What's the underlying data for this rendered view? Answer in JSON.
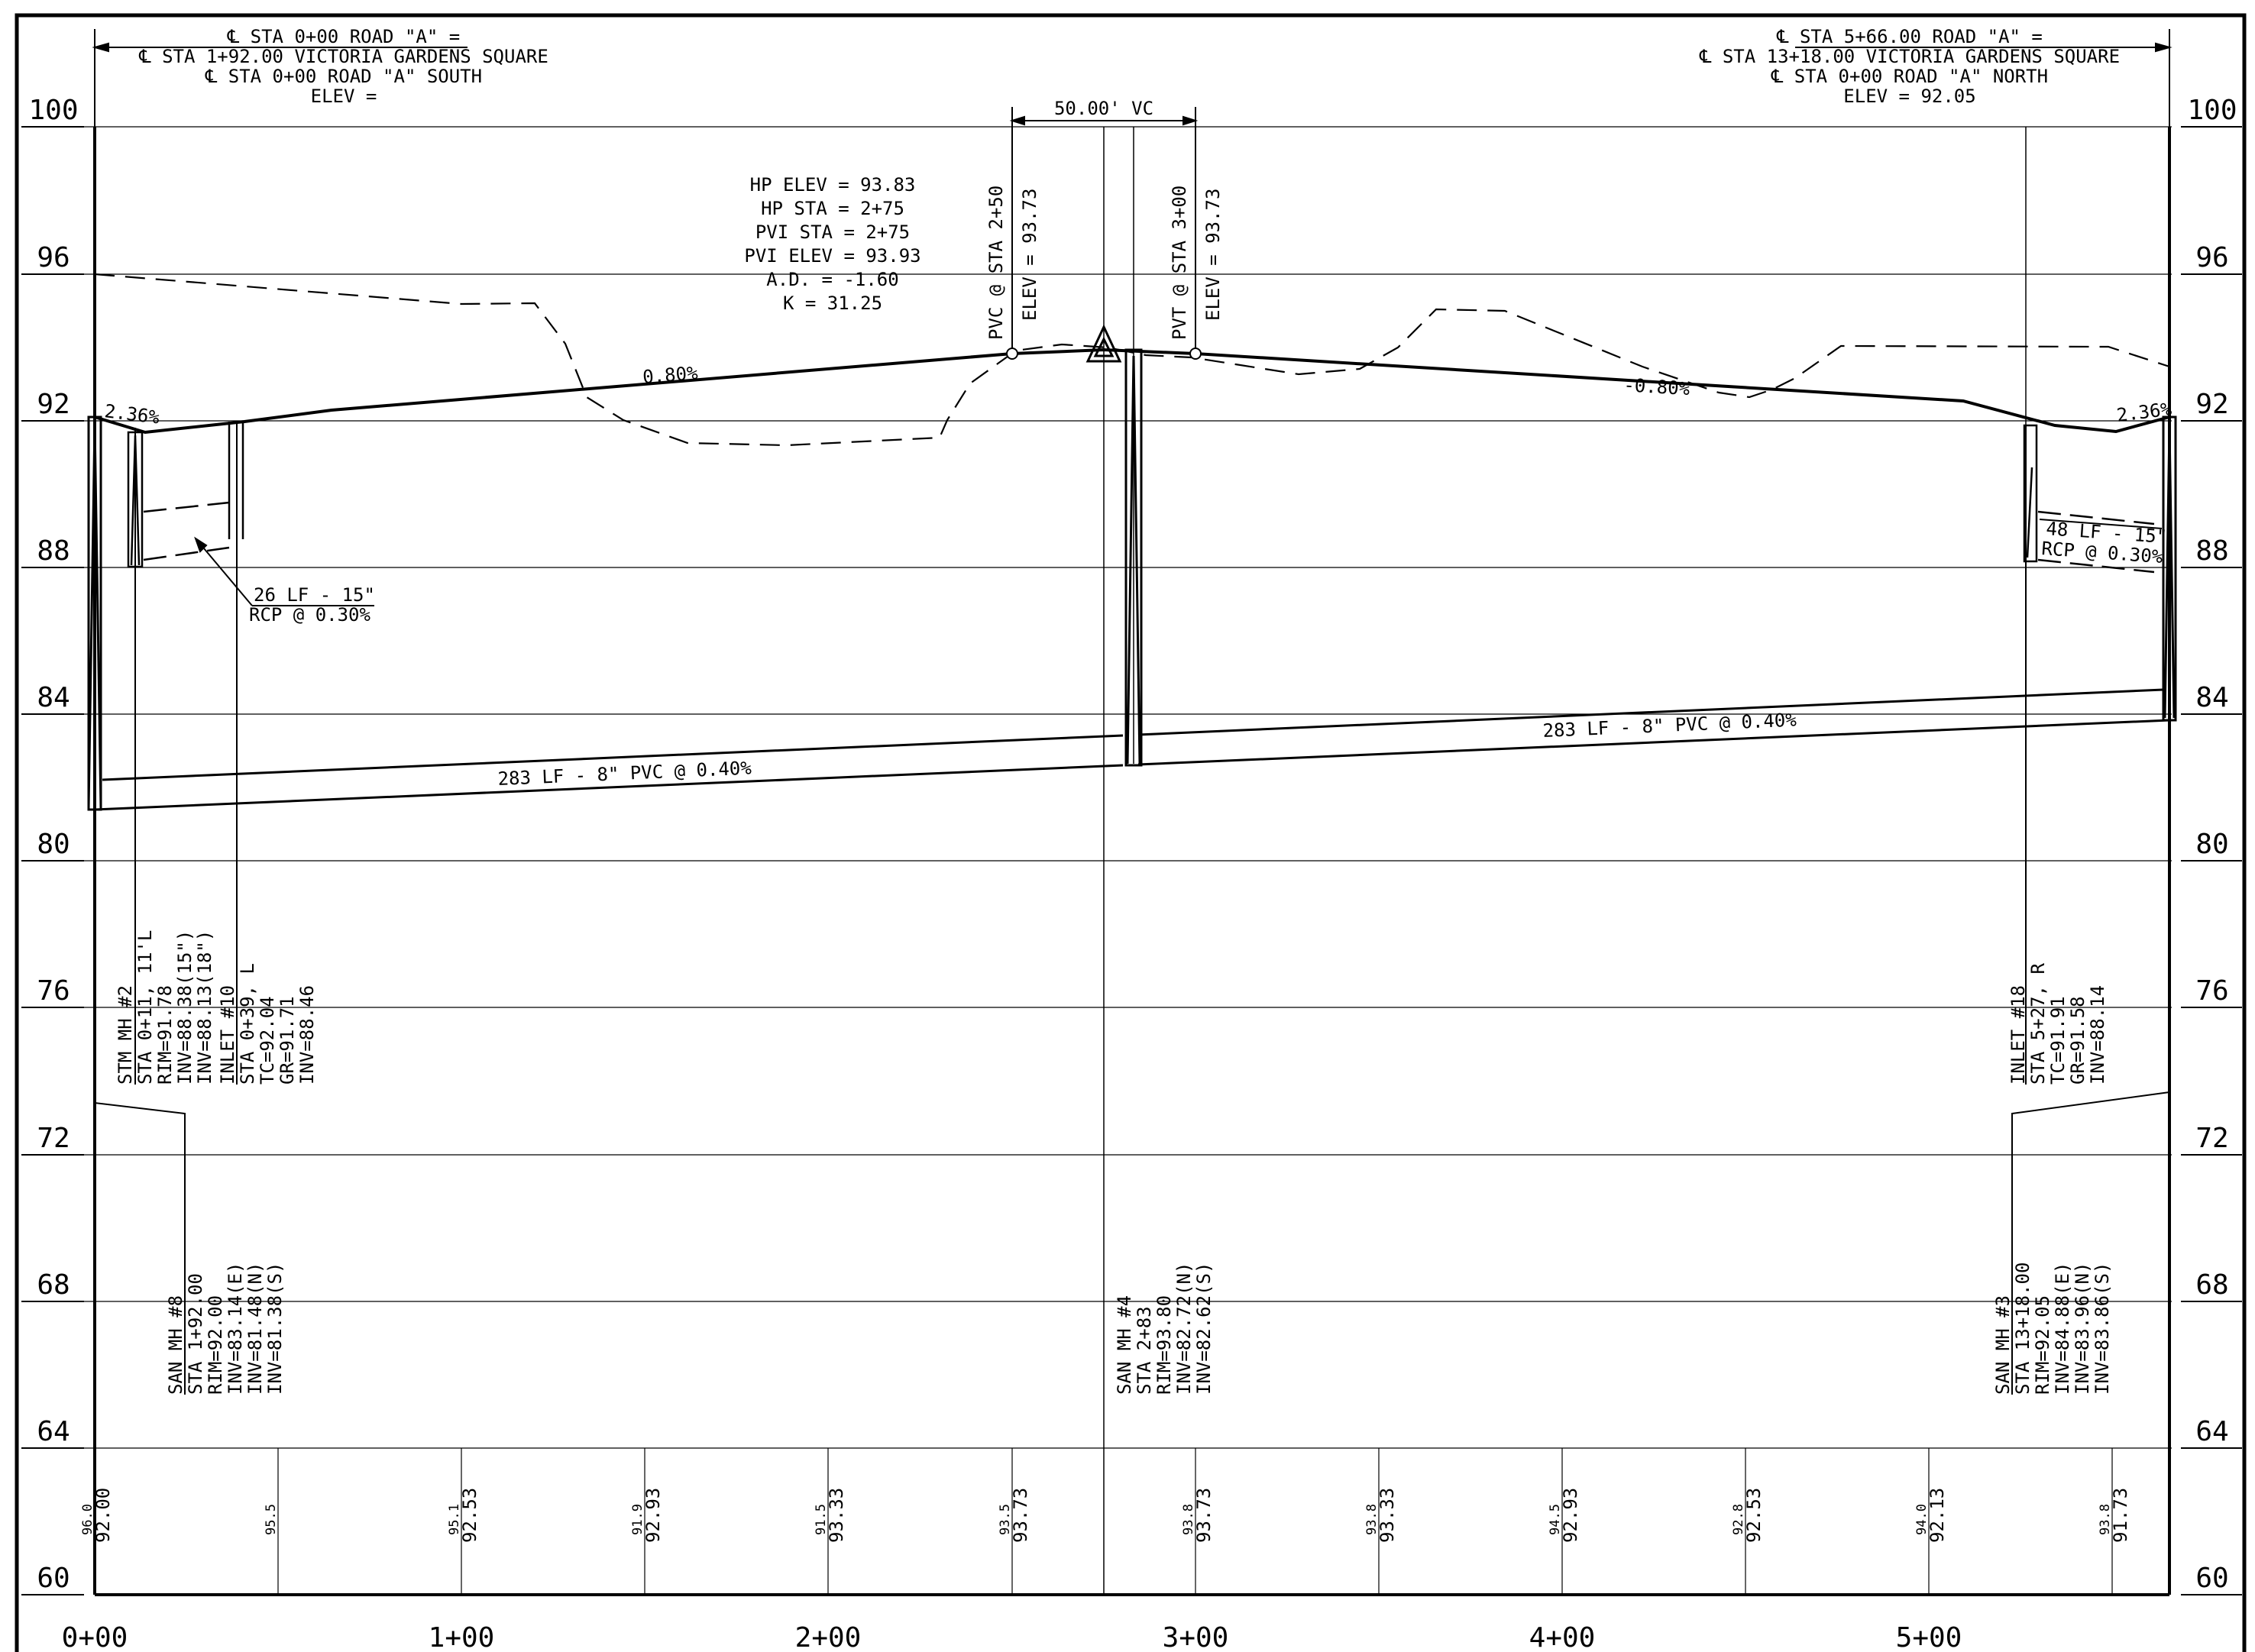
{
  "left_header": {
    "line1": "℄ STA 0+00 ROAD \"A\" =",
    "line2": "℄ STA 1+92.00 VICTORIA GARDENS SQUARE",
    "line3": "℄ STA 0+00 ROAD \"A\" SOUTH",
    "line4": "ELEV ="
  },
  "right_header": {
    "line1": "℄ STA 5+66.00 ROAD \"A\" =",
    "line2": "℄ STA 13+18.00 VICTORIA GARDENS SQUARE",
    "line3": "℄ STA 0+00 ROAD \"A\" NORTH",
    "line4": "ELEV = 92.05"
  },
  "vc_length": "50.00' VC",
  "curve_data": [
    "HP ELEV = 93.83",
    "HP STA = 2+75",
    "PVI STA = 2+75",
    "PVI ELEV = 93.93",
    "A.D. = -1.60",
    "K = 31.25"
  ],
  "pvc_label": "PVC @ STA 2+50",
  "pvc_elev": "ELEV = 93.73",
  "pvt_label": "PVT @ STA 3+00",
  "pvt_elev": "ELEV = 93.73",
  "grades": {
    "left_short": "2.36%",
    "left_main": "0.80%",
    "right_main": "-0.80%",
    "right_short": "2.36%"
  },
  "storm_pipes": {
    "left_line1": "26 LF - 15\"",
    "left_line2": "RCP @ 0.30%",
    "right_line1": "48 LF - 15\"",
    "right_line2": "RCP @ 0.30%"
  },
  "sewer_pipes": {
    "left": "283 LF - 8\" PVC @ 0.40%",
    "right": "283 LF - 8\" PVC @ 0.40%"
  },
  "structures": {
    "stm_mh2": [
      "STM MH #2",
      "STA 0+11, 11'L",
      "RIM=91.78",
      "INV=88.38(15\")",
      "INV=88.13(18\")"
    ],
    "inlet10": [
      "INLET #10",
      "STA 0+39, L",
      "TC=92.04",
      "GR=91.71",
      "INV=88.46"
    ],
    "inlet18": [
      "INLET #18",
      "STA 5+27, R",
      "TC=91.91",
      "GR=91.58",
      "INV=88.14"
    ],
    "san_mh8": [
      "SAN MH #8",
      "STA 1+92.00",
      "RIM=92.00",
      "INV=83.14(E)",
      "INV=81.48(N)",
      "INV=81.38(S)"
    ],
    "san_mh4": [
      "SAN MH #4",
      "STA 2+83",
      "RIM=93.80",
      "INV=82.72(N)",
      "INV=82.62(S)"
    ],
    "san_mh3": [
      "SAN MH #3",
      "STA 13+18.00",
      "RIM=92.05",
      "INV=84.88(E)",
      "INV=83.96(N)",
      "INV=83.86(S)"
    ]
  },
  "elevation_labels": [
    "100",
    "96",
    "92",
    "88",
    "84",
    "80",
    "76",
    "72",
    "68",
    "64",
    "60"
  ],
  "station_labels": [
    "0+00",
    "1+00",
    "2+00",
    "3+00",
    "4+00",
    "5+00"
  ],
  "bottom_elevations": [
    {
      "existing": "96.0",
      "proposed": "92.00"
    },
    {
      "existing": "95.5",
      "proposed": ""
    },
    {
      "existing": "95.1",
      "proposed": "92.53"
    },
    {
      "existing": "91.9",
      "proposed": "92.93"
    },
    {
      "existing": "91.5",
      "proposed": "93.33"
    },
    {
      "existing": "93.5",
      "proposed": "93.73"
    },
    {
      "existing": "93.8",
      "proposed": "93.73"
    },
    {
      "existing": "93.8",
      "proposed": "93.33"
    },
    {
      "existing": "94.5",
      "proposed": "92.93"
    },
    {
      "existing": "92.8",
      "proposed": "92.53"
    },
    {
      "existing": "94.0",
      "proposed": "92.13"
    },
    {
      "existing": "93.8",
      "proposed": "91.73"
    }
  ],
  "chart_data": {
    "type": "line",
    "xlabel": "",
    "ylabel": "",
    "xlim": [
      0,
      5.66
    ],
    "ylim": [
      60,
      100
    ],
    "x_ticks": [
      "0+00",
      "1+00",
      "2+00",
      "3+00",
      "4+00",
      "5+00"
    ],
    "y_ticks": [
      100,
      96,
      92,
      88,
      84,
      80,
      76,
      72,
      68,
      64,
      60
    ],
    "grid": true,
    "series": [
      {
        "name": "",
        "style": "solid",
        "x": [
          0.0,
          0.14,
          0.41,
          0.65,
          2.5,
          2.75,
          3.0,
          4.75,
          5.27,
          5.55,
          5.66
        ],
        "y": [
          92.05,
          91.78,
          91.91,
          92.12,
          93.73,
          93.83,
          93.73,
          92.4,
          91.91,
          91.79,
          92.05
        ]
      },
      {
        "name": "",
        "style": "dashed",
        "x": [
          0.0,
          0.5,
          0.9,
          1.25,
          1.4,
          1.75,
          2.2,
          2.3,
          2.4,
          2.55,
          2.75,
          2.95,
          3.3,
          3.5,
          3.65,
          3.85,
          4.0,
          4.45,
          4.6,
          4.7,
          4.85,
          5.55,
          5.66
        ],
        "y": [
          96.0,
          95.5,
          95.2,
          94.3,
          92.8,
          91.7,
          91.5,
          91.6,
          92.0,
          93.5,
          93.9,
          93.8,
          93.4,
          93.5,
          94.2,
          95.1,
          95.0,
          93.6,
          92.8,
          92.8,
          94.0,
          94.0,
          93.6
        ]
      }
    ]
  }
}
